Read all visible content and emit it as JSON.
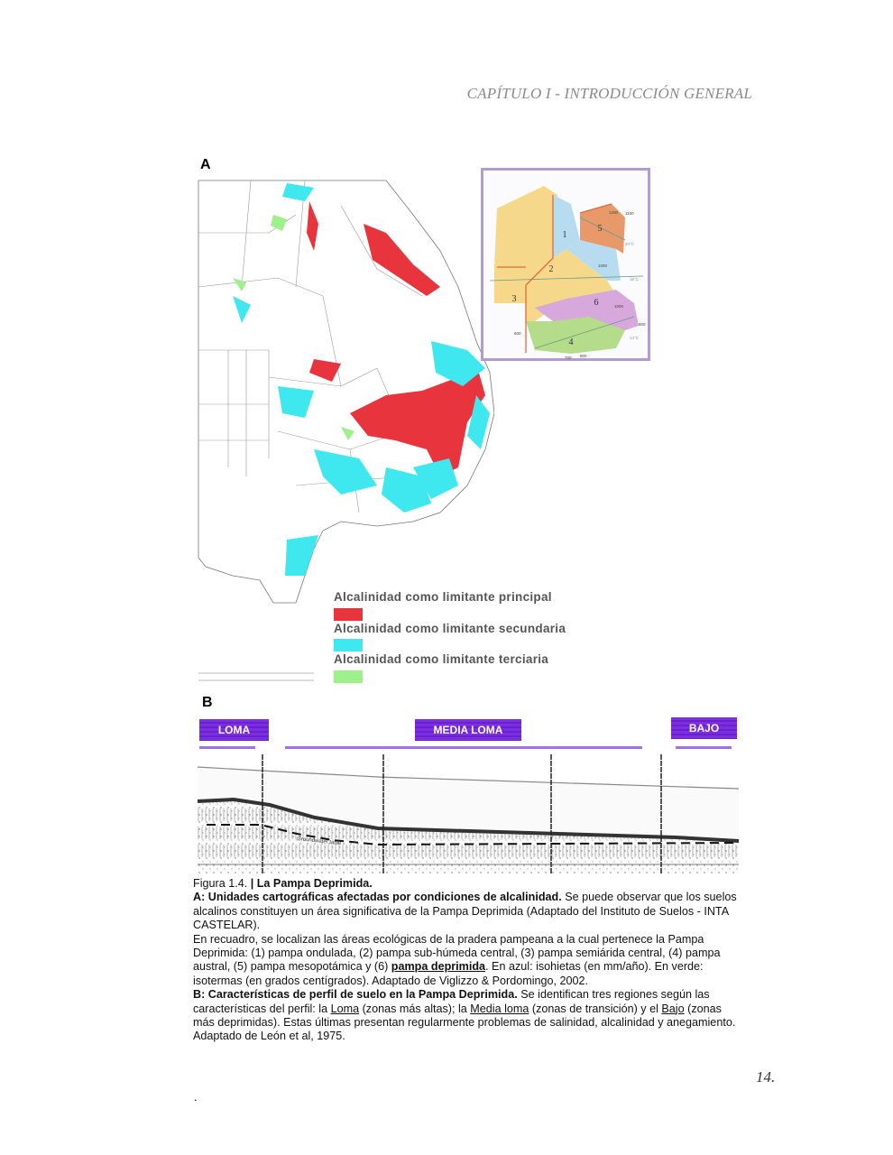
{
  "header": {
    "title": "CAPÍTULO I - INTRODUCCIÓN GENERAL"
  },
  "figure": {
    "panel_a_label": "A",
    "panel_b_label": "B",
    "legend": [
      {
        "label": "Alcalinidad como limitante principal",
        "color": "#e8343c"
      },
      {
        "label": "Alcalinidad como limitante secundaria",
        "color": "#3ee8ee"
      },
      {
        "label": "Alcalinidad como limitante terciaria",
        "color": "#9ef08a"
      }
    ],
    "inset": {
      "regions": [
        "1",
        "2",
        "3",
        "4",
        "5",
        "6"
      ],
      "isohyets": [
        "1200",
        "1100",
        "1000",
        "1000",
        "800",
        "600",
        "700",
        "800"
      ],
      "isotherms": [
        "20°C",
        "16°C",
        "14°C"
      ]
    },
    "profile_zones": [
      "LOMA",
      "MEDIA LOMA",
      "BAJO"
    ],
    "profile_annotation": "Groundwater table",
    "colors": {
      "zone_purple": "#7b2fe0",
      "red": "#e8343c",
      "cyan": "#3ee8ee",
      "green": "#9ef08a"
    }
  },
  "caption": {
    "fig_number": "Figura 1.4. ",
    "fig_title": "| La Pampa Deprimida.",
    "a_title": "A: Unidades cartográficas afectadas por condiciones de alcalinidad.",
    "a_text": " Se puede observar que los suelos alcalinos constituyen un área significativa de la Pampa Deprimida (Adaptado del Instituto de Suelos - INTA CASTELAR).",
    "inset_text_1": "En recuadro, se localizan las áreas ecológicas de la pradera pampeana a la cual pertenece la Pampa Deprimida:  (1) pampa ondulada, (2) pampa sub-húmeda central, (3) pampa semiárida central, (4) pampa austral, (5) pampa mesopotámica y (6) ",
    "inset_bold": "pampa deprimida",
    "inset_text_2": ". En azul: isohietas (en mm/año). En verde: isotermas (en grados centígrados). Adaptado de Viglizzo & Pordomingo, 2002.",
    "b_title": "B: Características de perfil de suelo en la Pampa Deprimida.",
    "b_text_1": " Se identifican tres regiones según las características del perfil: la ",
    "b_loma": "Loma",
    "b_text_2": " (zonas más altas); la ",
    "b_media": "Media loma",
    "b_text_3": " (zonas de transición) y el ",
    "b_bajo": "Bajo",
    "b_text_4": " (zonas más deprimidas). Estas últimas presentan regularmente problemas de salinidad, alcalinidad y anegamiento. Adaptado de León et al, 1975."
  },
  "footer": {
    "page_number": "14.",
    "dot": "."
  }
}
